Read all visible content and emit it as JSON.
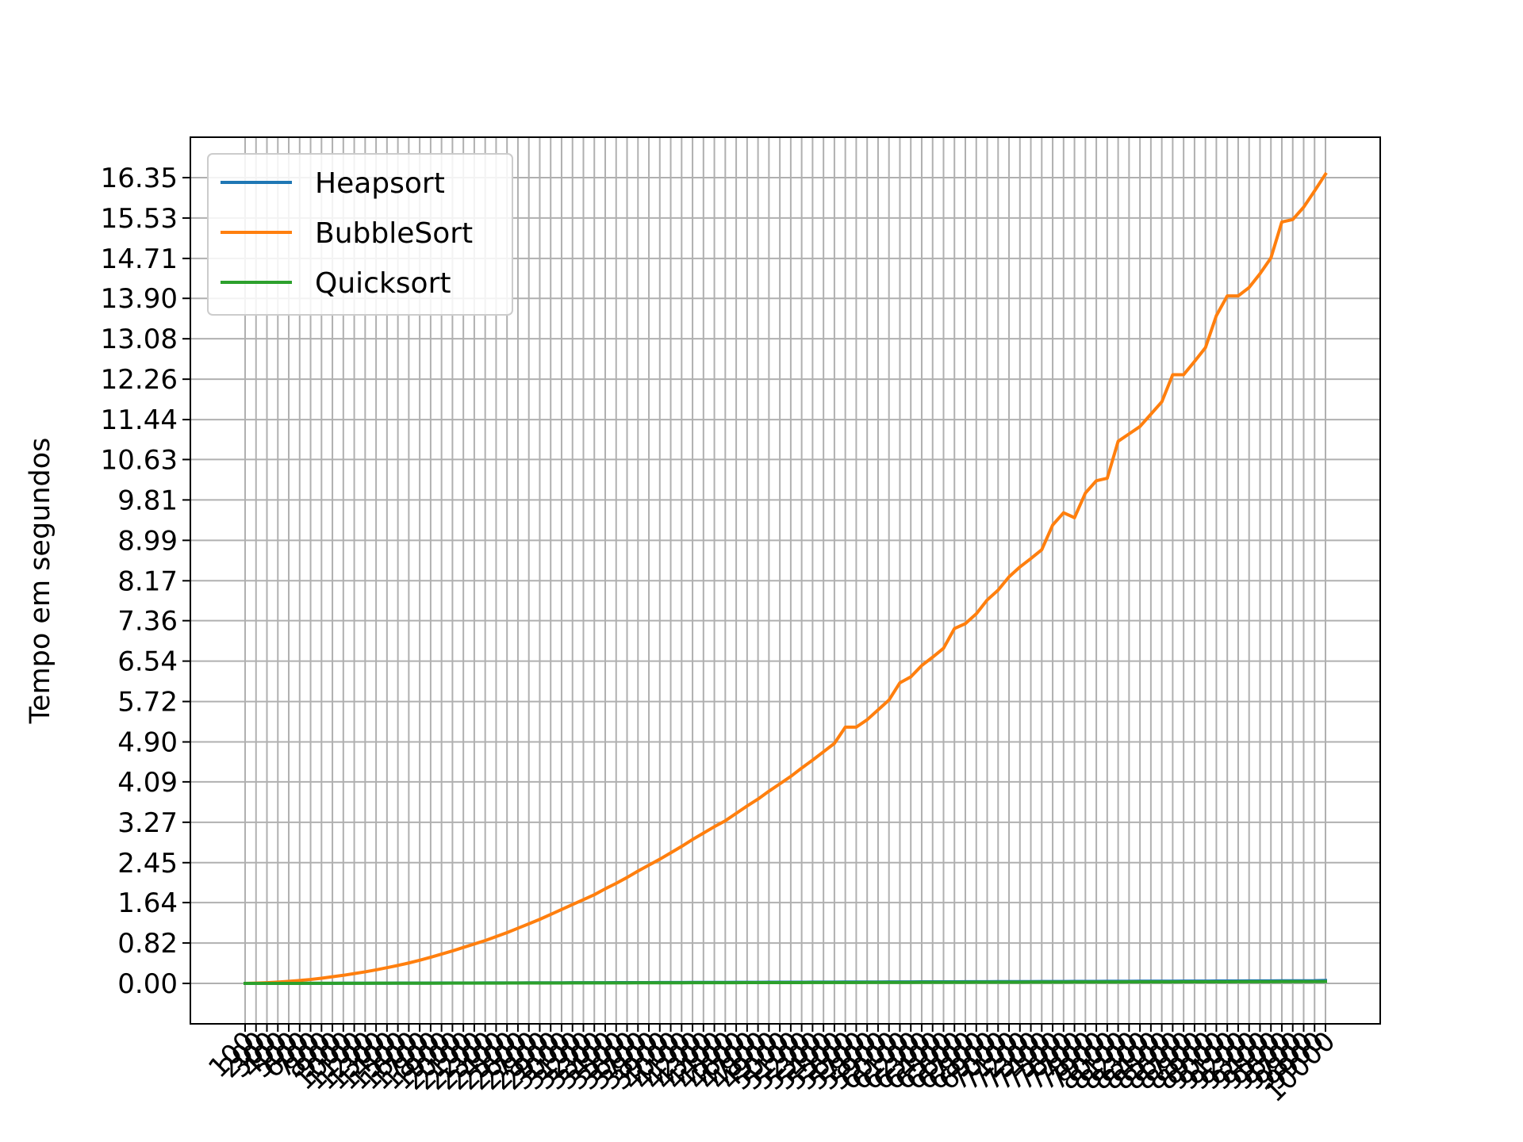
{
  "chart_data": {
    "type": "line",
    "xlabel": "",
    "ylabel": "Tempo em segundos",
    "x": [
      100,
      200,
      300,
      400,
      500,
      600,
      700,
      800,
      900,
      1000,
      1100,
      1200,
      1300,
      1400,
      1500,
      1600,
      1700,
      1800,
      1900,
      2000,
      2100,
      2200,
      2300,
      2400,
      2500,
      2600,
      2700,
      2800,
      2900,
      3000,
      3100,
      3200,
      3300,
      3400,
      3500,
      3600,
      3700,
      3800,
      3900,
      4000,
      4100,
      4200,
      4300,
      4400,
      4500,
      4600,
      4700,
      4800,
      4900,
      5000,
      5100,
      5200,
      5300,
      5400,
      5500,
      5600,
      5700,
      5800,
      5900,
      6000,
      6100,
      6200,
      6300,
      6400,
      6500,
      6600,
      6700,
      6800,
      6900,
      7000,
      7100,
      7200,
      7300,
      7400,
      7500,
      7600,
      7700,
      7800,
      7900,
      8000,
      8100,
      8200,
      8300,
      8400,
      8500,
      8600,
      8700,
      8800,
      8900,
      9000,
      9100,
      9200,
      9300,
      9400,
      9500,
      9600,
      9700,
      9800,
      9900,
      10000
    ],
    "ylim": [
      -0.82,
      17.17
    ],
    "yticks": [
      "0.00",
      "0.82",
      "1.64",
      "2.45",
      "3.27",
      "4.09",
      "4.90",
      "5.72",
      "6.54",
      "7.36",
      "8.17",
      "8.99",
      "9.81",
      "10.63",
      "11.44",
      "12.26",
      "13.08",
      "13.90",
      "14.71",
      "15.53",
      "16.35"
    ],
    "grid": true,
    "legend_position": "upper-left",
    "series": [
      {
        "name": "Heapsort",
        "color": "#1f77b4",
        "values": [
          0.0003,
          0.0006,
          0.001,
          0.0014,
          0.0018,
          0.0022,
          0.0026,
          0.003,
          0.0035,
          0.0039,
          0.0043,
          0.0048,
          0.0052,
          0.0057,
          0.0061,
          0.0066,
          0.0071,
          0.0075,
          0.008,
          0.0085,
          0.009,
          0.0095,
          0.01,
          0.0105,
          0.011,
          0.0115,
          0.012,
          0.0125,
          0.013,
          0.0135,
          0.014,
          0.0146,
          0.0151,
          0.0156,
          0.0161,
          0.0167,
          0.0172,
          0.0177,
          0.0183,
          0.0188,
          0.0194,
          0.0199,
          0.0205,
          0.021,
          0.0216,
          0.0221,
          0.0227,
          0.0233,
          0.0238,
          0.0244,
          0.025,
          0.0255,
          0.0261,
          0.0267,
          0.0273,
          0.0278,
          0.0284,
          0.029,
          0.0296,
          0.0302,
          0.0307,
          0.0313,
          0.0319,
          0.0325,
          0.0331,
          0.0337,
          0.0343,
          0.0349,
          0.0355,
          0.0361,
          0.0367,
          0.0373,
          0.0379,
          0.0385,
          0.0391,
          0.0397,
          0.0403,
          0.0409,
          0.0415,
          0.0421,
          0.0427,
          0.0434,
          0.044,
          0.0446,
          0.0452,
          0.0458,
          0.0464,
          0.0471,
          0.0477,
          0.0483,
          0.0489,
          0.0496,
          0.0502,
          0.0508,
          0.0514,
          0.0521,
          0.0527,
          0.0533,
          0.054,
          0.06
        ]
      },
      {
        "name": "BubbleSort",
        "color": "#ff7f0e",
        "values": [
          0.0016,
          0.0065,
          0.015,
          0.027,
          0.042,
          0.06,
          0.08,
          0.105,
          0.135,
          0.165,
          0.2,
          0.235,
          0.275,
          0.32,
          0.365,
          0.415,
          0.47,
          0.53,
          0.595,
          0.66,
          0.73,
          0.8,
          0.87,
          0.95,
          1.03,
          1.12,
          1.21,
          1.3,
          1.4,
          1.5,
          1.6,
          1.7,
          1.8,
          1.92,
          2.03,
          2.15,
          2.28,
          2.4,
          2.52,
          2.65,
          2.78,
          2.92,
          3.05,
          3.18,
          3.3,
          3.45,
          3.6,
          3.74,
          3.9,
          4.05,
          4.2,
          4.37,
          4.53,
          4.7,
          4.87,
          5.2,
          5.2,
          5.35,
          5.55,
          5.75,
          6.1,
          6.22,
          6.45,
          6.62,
          6.8,
          7.2,
          7.3,
          7.5,
          7.78,
          7.98,
          8.25,
          8.45,
          8.62,
          8.8,
          9.3,
          9.55,
          9.45,
          9.95,
          10.2,
          10.25,
          11.0,
          11.15,
          11.3,
          11.55,
          11.8,
          12.35,
          12.35,
          12.62,
          12.9,
          13.55,
          13.95,
          13.95,
          14.12,
          14.4,
          14.72,
          15.45,
          15.5,
          15.75,
          16.08,
          16.42
        ]
      },
      {
        "name": "Quicksort",
        "color": "#2ca02c",
        "values": [
          0.0002,
          0.0004,
          0.0007,
          0.001,
          0.0013,
          0.0016,
          0.0019,
          0.0022,
          0.0025,
          0.0028,
          0.0031,
          0.0034,
          0.0037,
          0.004,
          0.0043,
          0.0047,
          0.005,
          0.0053,
          0.0057,
          0.006,
          0.0063,
          0.0067,
          0.007,
          0.0074,
          0.0077,
          0.0081,
          0.0084,
          0.0088,
          0.0091,
          0.0095,
          0.0098,
          0.0102,
          0.0105,
          0.0109,
          0.0113,
          0.0116,
          0.012,
          0.0124,
          0.0127,
          0.0131,
          0.0135,
          0.0139,
          0.0142,
          0.0146,
          0.015,
          0.0154,
          0.0158,
          0.0161,
          0.0165,
          0.0169,
          0.0173,
          0.0177,
          0.0181,
          0.0185,
          0.0189,
          0.0193,
          0.0197,
          0.0201,
          0.0205,
          0.0209,
          0.0213,
          0.0217,
          0.0221,
          0.0225,
          0.0229,
          0.0233,
          0.0237,
          0.0241,
          0.0245,
          0.0249,
          0.0253,
          0.0258,
          0.0262,
          0.0266,
          0.027,
          0.0274,
          0.0278,
          0.0283,
          0.0287,
          0.0291,
          0.0295,
          0.03,
          0.0304,
          0.0308,
          0.0312,
          0.0317,
          0.0321,
          0.0325,
          0.033,
          0.0334,
          0.0338,
          0.0343,
          0.0347,
          0.0351,
          0.0356,
          0.036,
          0.0364,
          0.0369,
          0.0373,
          0.0378
        ]
      }
    ]
  }
}
